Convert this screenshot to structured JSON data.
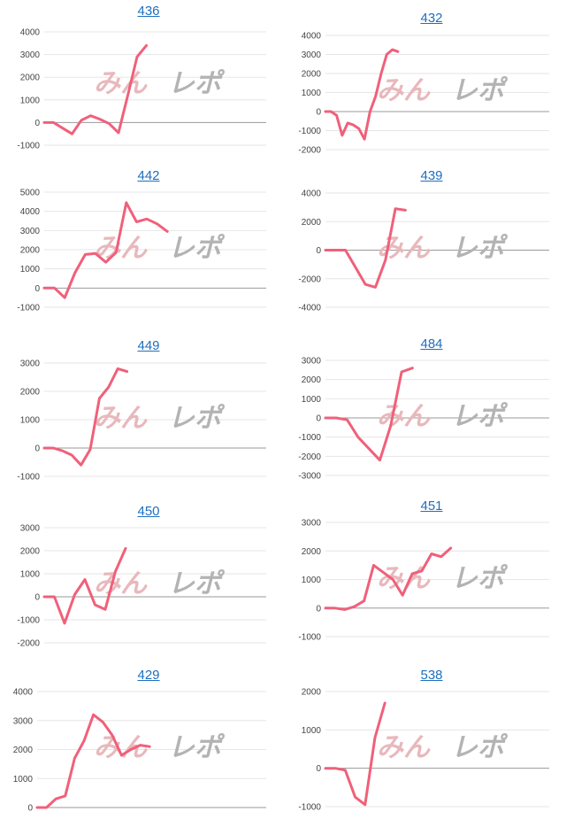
{
  "watermark": {
    "pink": "みん",
    "gray": "レポ"
  },
  "line_color": "#f0607a",
  "chart_data": [
    {
      "type": "line",
      "title": "436",
      "ylim": [
        -1000,
        4000
      ],
      "yticks": [
        -1000,
        0,
        1000,
        2000,
        3000,
        4000
      ],
      "series": [
        {
          "values": [
            0,
            0,
            -250,
            -500,
            100,
            300,
            150,
            -50,
            -450,
            1200,
            2900,
            3400
          ]
        }
      ]
    },
    {
      "type": "line",
      "title": "432",
      "ylim": [
        -2000,
        4000
      ],
      "yticks": [
        -2000,
        -1000,
        0,
        1000,
        2000,
        3000,
        4000
      ],
      "series": [
        {
          "values": [
            0,
            0,
            -200,
            -1250,
            -600,
            -700,
            -900,
            -1450,
            0,
            800,
            2000,
            3000,
            3250,
            3150
          ]
        }
      ]
    },
    {
      "type": "line",
      "title": "442",
      "ylim": [
        -1000,
        5000
      ],
      "yticks": [
        -1000,
        0,
        1000,
        2000,
        3000,
        4000,
        5000
      ],
      "series": [
        {
          "values": [
            0,
            0,
            -500,
            800,
            1750,
            1800,
            1350,
            1850,
            4450,
            3450,
            3600,
            3350,
            2950
          ]
        }
      ]
    },
    {
      "type": "line",
      "title": "439",
      "ylim": [
        -4000,
        4000
      ],
      "yticks": [
        -4000,
        -2000,
        0,
        2000,
        4000
      ],
      "series": [
        {
          "values": [
            0,
            0,
            0,
            -1200,
            -2400,
            -2600,
            -700,
            2900,
            2800
          ]
        }
      ]
    },
    {
      "type": "line",
      "title": "449",
      "ylim": [
        -1000,
        3000
      ],
      "yticks": [
        -1000,
        0,
        1000,
        2000,
        3000
      ],
      "series": [
        {
          "values": [
            0,
            0,
            -100,
            -250,
            -600,
            -50,
            1750,
            2150,
            2800,
            2700
          ]
        }
      ]
    },
    {
      "type": "line",
      "title": "484",
      "ylim": [
        -3000,
        3000
      ],
      "yticks": [
        -3000,
        -2000,
        -1000,
        0,
        1000,
        2000,
        3000
      ],
      "series": [
        {
          "values": [
            0,
            0,
            -100,
            -1000,
            -1600,
            -2200,
            -400,
            2400,
            2600
          ]
        }
      ]
    },
    {
      "type": "line",
      "title": "450",
      "ylim": [
        -2000,
        3000
      ],
      "yticks": [
        -2000,
        -1000,
        0,
        1000,
        2000,
        3000
      ],
      "series": [
        {
          "values": [
            0,
            0,
            -1150,
            100,
            750,
            -350,
            -550,
            1100,
            2100
          ]
        }
      ]
    },
    {
      "type": "line",
      "title": "451",
      "ylim": [
        -1000,
        3000
      ],
      "yticks": [
        -1000,
        0,
        1000,
        2000,
        3000
      ],
      "series": [
        {
          "values": [
            0,
            0,
            -50,
            50,
            250,
            1500,
            1250,
            1000,
            450,
            1200,
            1300,
            1900,
            1800,
            2100
          ]
        }
      ]
    },
    {
      "type": "line",
      "title": "429",
      "ylim": [
        0,
        4000
      ],
      "yticks": [
        0,
        1000,
        2000,
        3000,
        4000
      ],
      "series": [
        {
          "values": [
            0,
            0,
            300,
            400,
            1700,
            2300,
            3200,
            2950,
            2500,
            1800,
            2000,
            2150,
            2100
          ]
        }
      ]
    },
    {
      "type": "line",
      "title": "538",
      "ylim": [
        -1000,
        2000
      ],
      "yticks": [
        -1000,
        0,
        1000,
        2000
      ],
      "series": [
        {
          "values": [
            0,
            0,
            -50,
            -750,
            -950,
            800,
            1700
          ]
        }
      ]
    }
  ]
}
